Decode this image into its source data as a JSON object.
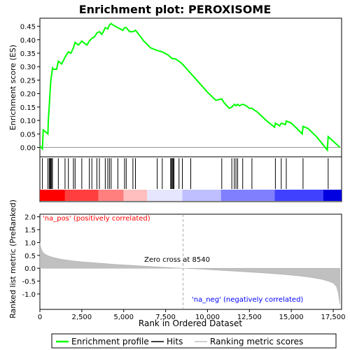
{
  "chart_data": {
    "type": "line",
    "title": "Enrichment plot: PEROXISOME",
    "top_panel": {
      "ylabel": "Enrichment score (ES)",
      "ylim": [
        -0.035,
        0.48
      ],
      "yticks": [
        "0.00",
        "0.05",
        "0.10",
        "0.15",
        "0.20",
        "0.25",
        "0.30",
        "0.35",
        "0.40",
        "0.45"
      ],
      "ytick_values": [
        0,
        0.05,
        0.1,
        0.15,
        0.2,
        0.25,
        0.3,
        0.35,
        0.4,
        0.45
      ],
      "series": [
        {
          "name": "Enrichment profile",
          "color": "#00ff00",
          "x": [
            0,
            150,
            200,
            480,
            500,
            560,
            600,
            650,
            700,
            750,
            800,
            1000,
            1100,
            1300,
            1500,
            1700,
            1850,
            2000,
            2100,
            2300,
            2500,
            2800,
            2950,
            3100,
            3250,
            3400,
            3550,
            3700,
            3900,
            4050,
            4150,
            4250,
            4350,
            4650,
            4950,
            5050,
            5150,
            5350,
            5550,
            5700,
            5900,
            6200,
            6600,
            7000,
            7300,
            7600,
            7800,
            7850,
            7900,
            8000,
            8100,
            8300,
            8500,
            9000,
            9500,
            10000,
            10500,
            10850,
            11000,
            11300,
            11450,
            11600,
            11700,
            11800,
            11900,
            12100,
            12300,
            12500,
            12650,
            13000,
            13500,
            14000,
            14050,
            14300,
            14400,
            14650,
            14700,
            15000,
            15500,
            15650,
            15700,
            16000,
            16500,
            17150,
            17200,
            17900
          ],
          "y": [
            0.005,
            -0.005,
            0.065,
            0.05,
            0.1,
            0.155,
            0.2,
            0.25,
            0.27,
            0.295,
            0.29,
            0.29,
            0.32,
            0.31,
            0.335,
            0.355,
            0.35,
            0.37,
            0.39,
            0.38,
            0.395,
            0.38,
            0.395,
            0.405,
            0.41,
            0.425,
            0.43,
            0.42,
            0.445,
            0.44,
            0.455,
            0.46,
            0.455,
            0.445,
            0.435,
            0.445,
            0.445,
            0.43,
            0.43,
            0.435,
            0.42,
            0.395,
            0.37,
            0.36,
            0.355,
            0.345,
            0.335,
            0.332,
            0.33,
            0.33,
            0.328,
            0.32,
            0.31,
            0.275,
            0.24,
            0.205,
            0.175,
            0.18,
            0.165,
            0.145,
            0.15,
            0.16,
            0.155,
            0.16,
            0.155,
            0.16,
            0.155,
            0.145,
            0.145,
            0.13,
            0.1,
            0.075,
            0.09,
            0.08,
            0.09,
            0.085,
            0.098,
            0.09,
            0.06,
            0.05,
            0.078,
            0.07,
            0.04,
            -0.01,
            0.04,
            0.0
          ]
        }
      ]
    },
    "hits": {
      "name": "Hits",
      "x": [
        150,
        480,
        560,
        600,
        650,
        700,
        750,
        1100,
        1500,
        1700,
        2000,
        2100,
        2500,
        2950,
        3100,
        3400,
        3550,
        3900,
        4050,
        4150,
        4250,
        4650,
        5050,
        5150,
        5550,
        5700,
        7000,
        7300,
        7800,
        7850,
        7900,
        7950,
        8000,
        8300,
        8500,
        9000,
        10850,
        11450,
        11600,
        11700,
        11800,
        12100,
        12650,
        14050,
        14400,
        14700,
        15700,
        17200
      ]
    },
    "bottom_panel": {
      "ylabel": "Ranked list metric (PreRanked)",
      "xlabel": "Rank in Ordered Dataset",
      "ylim": [
        -1.6,
        2.1
      ],
      "yticks": [
        "2.0",
        "1.5",
        "1.0",
        "0.5",
        "0.0",
        "-0.5",
        "-1.0"
      ],
      "ytick_values": [
        2.0,
        1.5,
        1.0,
        0.5,
        0.0,
        -0.5,
        -1.0
      ],
      "series": [
        {
          "name": "Ranking metric scores",
          "color": "#c0c0c0",
          "x": [
            0,
            50,
            150,
            300,
            500,
            800,
            1200,
            1800,
            2500,
            3500,
            4500,
            5500,
            6500,
            7500,
            8540,
            9500,
            10500,
            11500,
            12500,
            13500,
            14500,
            15500,
            16200,
            16800,
            17200,
            17500,
            17700,
            17800,
            17900
          ],
          "y": [
            1.0,
            0.8,
            0.65,
            0.55,
            0.48,
            0.42,
            0.36,
            0.3,
            0.25,
            0.2,
            0.15,
            0.11,
            0.07,
            0.035,
            0.0,
            -0.03,
            -0.07,
            -0.11,
            -0.15,
            -0.19,
            -0.24,
            -0.3,
            -0.36,
            -0.43,
            -0.5,
            -0.58,
            -0.72,
            -0.95,
            -1.4
          ]
        }
      ],
      "zero_cross_label": "Zero cross at 8540",
      "zero_cross": 8540,
      "pos_label": "'na_pos' (positively correlated)",
      "neg_label": "'na_neg' (negatively correlated)"
    },
    "xlim": [
      0,
      18000
    ],
    "xticks": [
      "0",
      "2,500",
      "5,000",
      "7,500",
      "10,000",
      "12,500",
      "15,000",
      "17,500"
    ],
    "xtick_values": [
      0,
      2500,
      5000,
      7500,
      10000,
      12500,
      15000,
      17500
    ],
    "legend": {
      "placement": "bottom",
      "items": [
        {
          "label": "Enrichment profile",
          "color": "#00ff00"
        },
        {
          "label": "Hits",
          "color": "#000000"
        },
        {
          "label": "Ranking metric scores",
          "color": "#c0c0c0"
        }
      ]
    },
    "colorbar": {
      "colors": [
        "#ff0000",
        "#ff3f3f",
        "#ff7f7f",
        "#ffbfbf",
        "#e6e6ff",
        "#bfbfff",
        "#8080ff",
        "#4040ff",
        "#0000e0"
      ],
      "stops": [
        0,
        1500,
        3500,
        5000,
        6400,
        8500,
        10800,
        14000,
        16900,
        18000
      ]
    }
  }
}
